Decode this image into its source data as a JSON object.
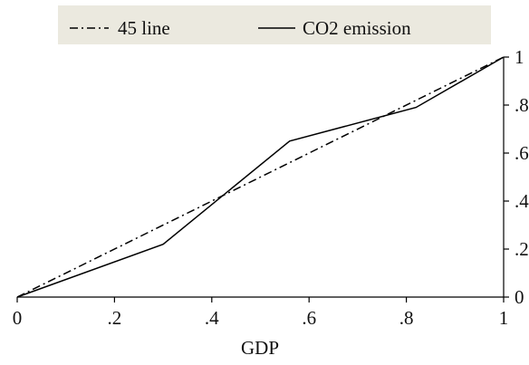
{
  "chart_data": {
    "type": "line",
    "title": "",
    "xlabel": "GDP",
    "ylabel": "",
    "xlim": [
      0,
      1
    ],
    "ylim": [
      0,
      1
    ],
    "x_ticks": [
      {
        "value": 0,
        "label": "0"
      },
      {
        "value": 0.2,
        "label": ".2"
      },
      {
        "value": 0.4,
        "label": ".4"
      },
      {
        "value": 0.6,
        "label": ".6"
      },
      {
        "value": 0.8,
        "label": ".8"
      },
      {
        "value": 1,
        "label": "1"
      }
    ],
    "y_ticks": [
      {
        "value": 0,
        "label": "0"
      },
      {
        "value": 0.2,
        "label": ".2"
      },
      {
        "value": 0.4,
        "label": ".4"
      },
      {
        "value": 0.6,
        "label": ".6"
      },
      {
        "value": 0.8,
        "label": ".8"
      },
      {
        "value": 1,
        "label": "1"
      }
    ],
    "y_axis_side": "right",
    "grid": false,
    "legend_position": "top",
    "series": [
      {
        "name": "45 line",
        "style": "dash-dot",
        "color": "#000000",
        "points": [
          [
            0,
            0
          ],
          [
            1,
            1
          ]
        ]
      },
      {
        "name": "CO2 emission",
        "style": "solid",
        "color": "#000000",
        "points": [
          [
            0,
            0
          ],
          [
            0.3,
            0.22
          ],
          [
            0.56,
            0.65
          ],
          [
            0.82,
            0.79
          ],
          [
            1,
            1
          ]
        ]
      }
    ]
  },
  "legend": {
    "background": "#ebe9df"
  }
}
